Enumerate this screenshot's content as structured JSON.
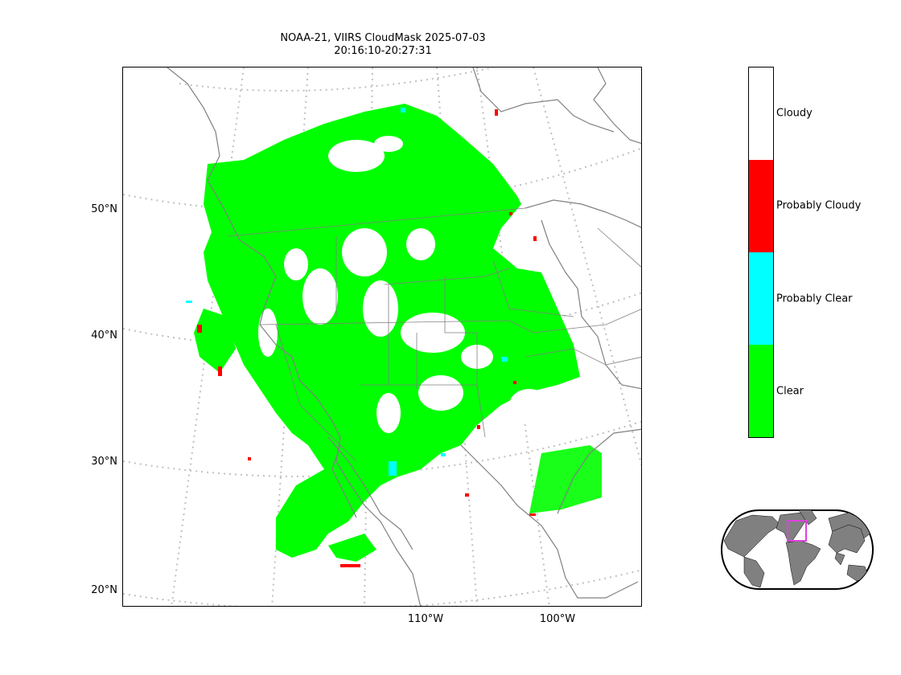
{
  "title": {
    "line1": "NOAA-21, VIIRS CloudMask 2025-07-03",
    "line2": "20:16:10-20:27:31"
  },
  "map": {
    "lat_labels": [
      "50°N",
      "40°N",
      "30°N",
      "20°N"
    ],
    "lon_labels": [
      "110°W",
      "100°W"
    ],
    "colors": {
      "clear": "#00ff00",
      "probably_clear": "#00ffff",
      "probably_cloudy": "#ff0000",
      "cloudy": "#ffffff",
      "coastline": "#808080",
      "graticule": "#c0c0c0"
    }
  },
  "colorbar": {
    "categories": [
      {
        "label": "Cloudy",
        "color": "#ffffff"
      },
      {
        "label": "Probably Cloudy",
        "color": "#ff0000"
      },
      {
        "label": "Probably Clear",
        "color": "#00ffff"
      },
      {
        "label": "Clear",
        "color": "#00ff00"
      }
    ]
  },
  "inset": {
    "land_color": "#808080",
    "highlight_color": "#e040e0"
  }
}
